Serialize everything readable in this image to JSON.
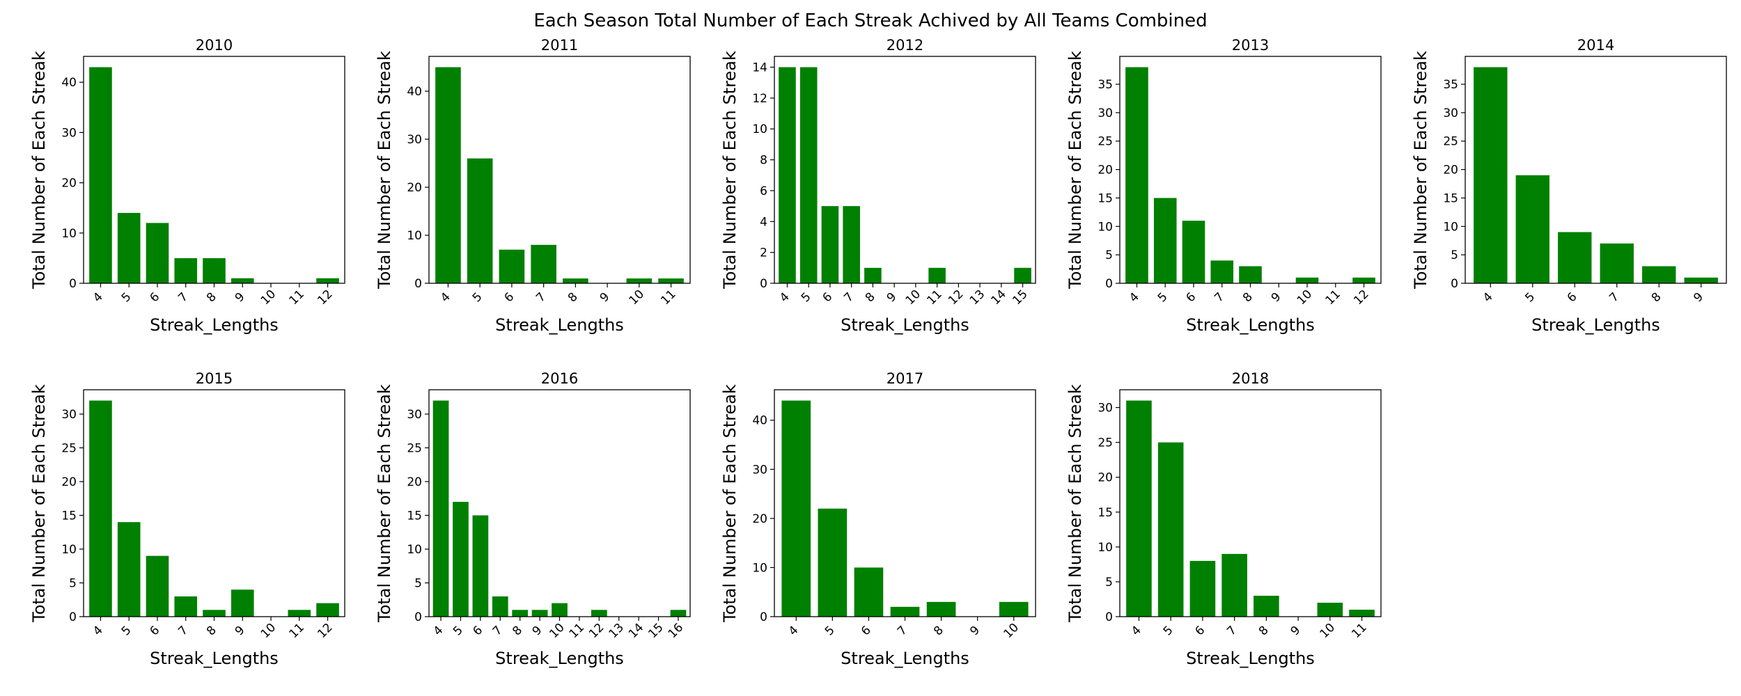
{
  "figure": {
    "title": "Each Season Total Number of Each Streak Achived by All Teams Combined"
  },
  "colors": {
    "bar": "#008000",
    "axis": "#000000",
    "background": "#ffffff"
  },
  "chart_data": [
    {
      "type": "bar",
      "title": "2010",
      "xlabel": "Streak_Lengths",
      "ylabel": "Total Number of Each Streak",
      "categories": [
        "4",
        "5",
        "6",
        "7",
        "8",
        "9",
        "10",
        "11",
        "12"
      ],
      "values": [
        43,
        14,
        12,
        5,
        5,
        1,
        0,
        0,
        1
      ],
      "ylim": [
        0,
        45.15
      ],
      "yticks": [
        0,
        10,
        20,
        30,
        40
      ],
      "grid": false
    },
    {
      "type": "bar",
      "title": "2011",
      "xlabel": "Streak_Lengths",
      "ylabel": "Total Number of Each Streak",
      "categories": [
        "4",
        "5",
        "6",
        "7",
        "8",
        "9",
        "10",
        "11"
      ],
      "values": [
        45,
        26,
        7,
        8,
        1,
        0,
        1,
        1
      ],
      "ylim": [
        0,
        47.25
      ],
      "yticks": [
        0,
        10,
        20,
        30,
        40
      ],
      "grid": false
    },
    {
      "type": "bar",
      "title": "2012",
      "xlabel": "Streak_Lengths",
      "ylabel": "Total Number of Each Streak",
      "categories": [
        "4",
        "5",
        "6",
        "7",
        "8",
        "9",
        "10",
        "11",
        "12",
        "13",
        "14",
        "15"
      ],
      "values": [
        14,
        14,
        5,
        5,
        1,
        0,
        0,
        1,
        0,
        0,
        0,
        1
      ],
      "ylim": [
        0,
        14.7
      ],
      "yticks": [
        0,
        2,
        4,
        6,
        8,
        10,
        12,
        14
      ],
      "grid": false
    },
    {
      "type": "bar",
      "title": "2013",
      "xlabel": "Streak_Lengths",
      "ylabel": "Total Number of Each Streak",
      "categories": [
        "4",
        "5",
        "6",
        "7",
        "8",
        "9",
        "10",
        "11",
        "12"
      ],
      "values": [
        38,
        15,
        11,
        4,
        3,
        0,
        1,
        0,
        1
      ],
      "ylim": [
        0,
        39.9
      ],
      "yticks": [
        0,
        5,
        10,
        15,
        20,
        25,
        30,
        35
      ],
      "grid": false
    },
    {
      "type": "bar",
      "title": "2014",
      "xlabel": "Streak_Lengths",
      "ylabel": "Total Number of Each Streak",
      "categories": [
        "4",
        "5",
        "6",
        "7",
        "8",
        "9"
      ],
      "values": [
        38,
        19,
        9,
        7,
        3,
        1
      ],
      "ylim": [
        0,
        39.9
      ],
      "yticks": [
        0,
        5,
        10,
        15,
        20,
        25,
        30,
        35
      ],
      "grid": false
    },
    {
      "type": "bar",
      "title": "2015",
      "xlabel": "Streak_Lengths",
      "ylabel": "Total Number of Each Streak",
      "categories": [
        "4",
        "5",
        "6",
        "7",
        "8",
        "9",
        "10",
        "11",
        "12"
      ],
      "values": [
        32,
        14,
        9,
        3,
        1,
        4,
        0,
        1,
        2
      ],
      "ylim": [
        0,
        33.6
      ],
      "yticks": [
        0,
        5,
        10,
        15,
        20,
        25,
        30
      ],
      "grid": false
    },
    {
      "type": "bar",
      "title": "2016",
      "xlabel": "Streak_Lengths",
      "ylabel": "Total Number of Each Streak",
      "categories": [
        "4",
        "5",
        "6",
        "7",
        "8",
        "9",
        "10",
        "11",
        "12",
        "13",
        "14",
        "15",
        "16"
      ],
      "values": [
        32,
        17,
        15,
        3,
        1,
        1,
        2,
        0,
        1,
        0,
        0,
        0,
        1
      ],
      "ylim": [
        0,
        33.6
      ],
      "yticks": [
        0,
        5,
        10,
        15,
        20,
        25,
        30
      ],
      "grid": false
    },
    {
      "type": "bar",
      "title": "2017",
      "xlabel": "Streak_Lengths",
      "ylabel": "Total Number of Each Streak",
      "categories": [
        "4",
        "5",
        "6",
        "7",
        "8",
        "9",
        "10"
      ],
      "values": [
        44,
        22,
        10,
        2,
        3,
        0,
        3
      ],
      "ylim": [
        0,
        46.2
      ],
      "yticks": [
        0,
        10,
        20,
        30,
        40
      ],
      "grid": false
    },
    {
      "type": "bar",
      "title": "2018",
      "xlabel": "Streak_Lengths",
      "ylabel": "Total Number of Each Streak",
      "categories": [
        "4",
        "5",
        "6",
        "7",
        "8",
        "9",
        "10",
        "11"
      ],
      "values": [
        31,
        25,
        8,
        9,
        3,
        0,
        2,
        1
      ],
      "ylim": [
        0,
        32.55
      ],
      "yticks": [
        0,
        5,
        10,
        15,
        20,
        25,
        30
      ],
      "grid": false
    }
  ]
}
